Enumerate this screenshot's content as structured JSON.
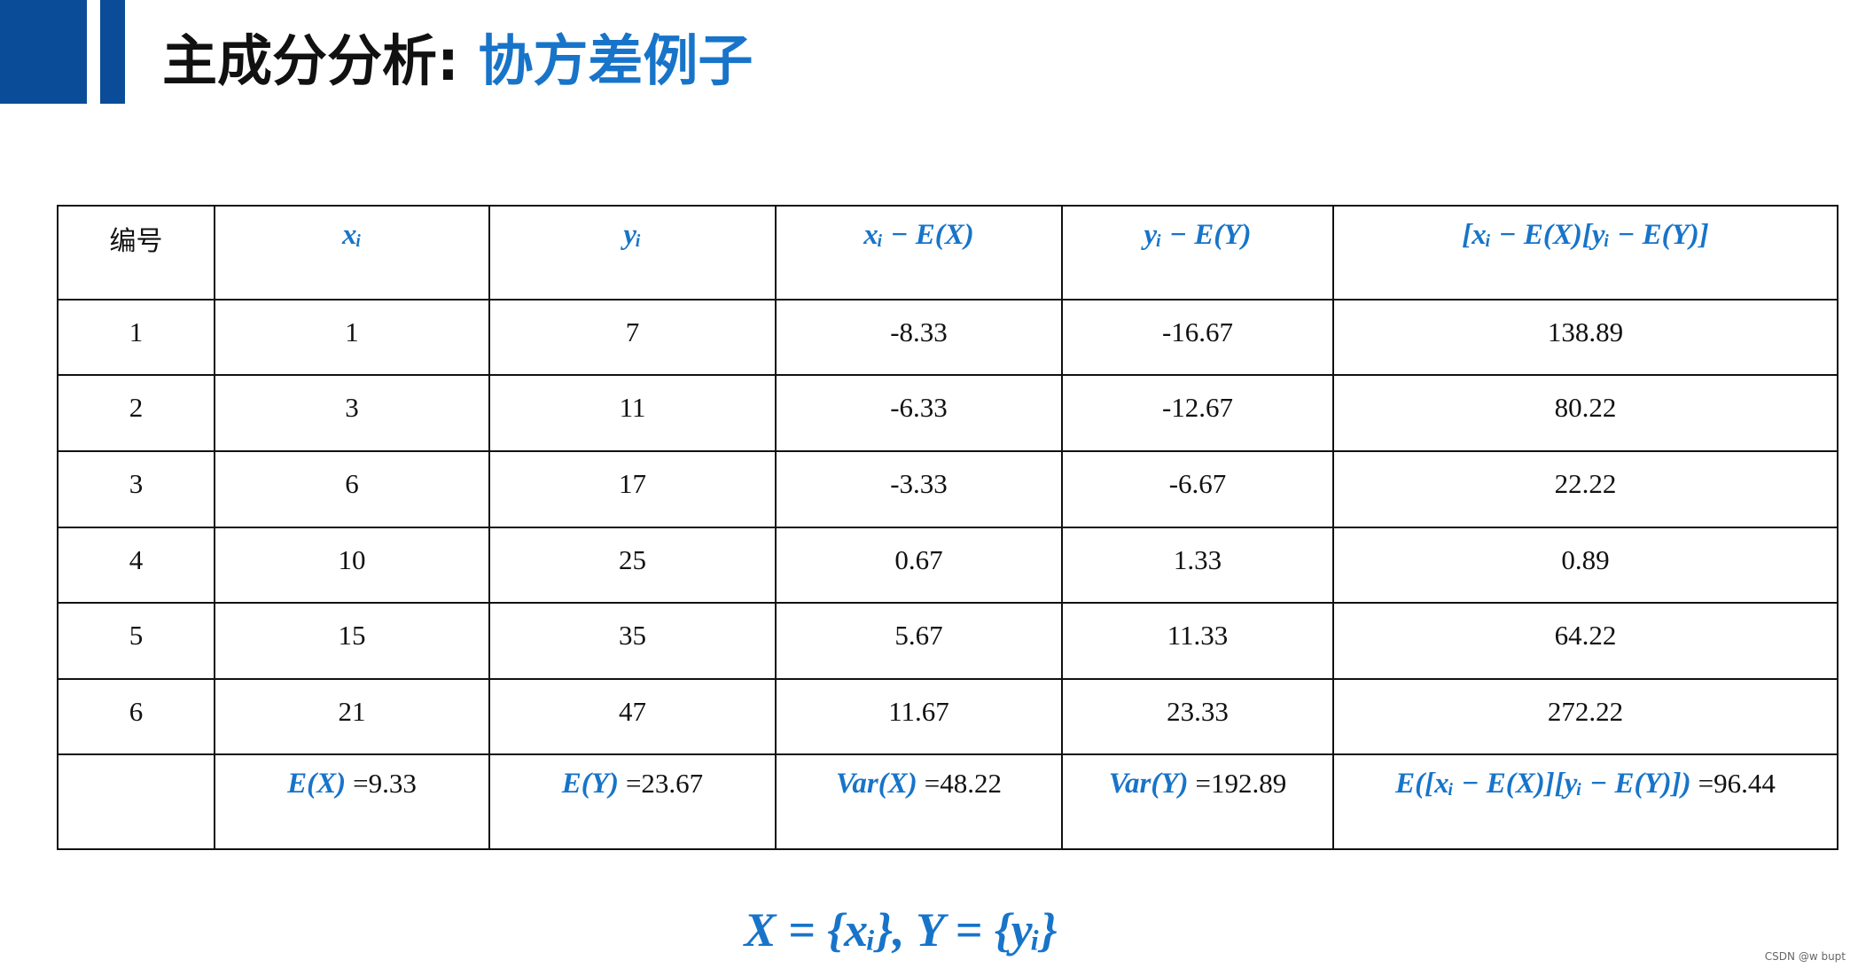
{
  "header": {
    "title": "主成分分析: ",
    "title_highlight": "协方差例子"
  },
  "table": {
    "columns": [
      "编号",
      "xᵢ",
      "yᵢ",
      "xᵢ − E(X)",
      "yᵢ − E(Y)",
      "[xᵢ − E(X)[yᵢ − E(Y)]"
    ],
    "rows": [
      [
        "1",
        "1",
        "7",
        "-8.33",
        "-16.67",
        "138.89"
      ],
      [
        "2",
        "3",
        "11",
        "-6.33",
        "-12.67",
        "80.22"
      ],
      [
        "3",
        "6",
        "17",
        "-3.33",
        "-6.67",
        "22.22"
      ],
      [
        "4",
        "10",
        "25",
        "0.67",
        "1.33",
        "0.89"
      ],
      [
        "5",
        "15",
        "35",
        "5.67",
        "11.33",
        "64.22"
      ],
      [
        "6",
        "21",
        "47",
        "11.67",
        "23.33",
        "272.22"
      ]
    ],
    "summary": [
      {
        "math": "E(X)",
        "value": "=9.33"
      },
      {
        "math": "E(Y)",
        "value": "=23.67"
      },
      {
        "math": "Var(X)",
        "value": "=48.22"
      },
      {
        "math": "Var(Y)",
        "value": "=192.89"
      },
      {
        "math": "E([xᵢ − E(X)][yᵢ − E(Y)])",
        "value": "=96.44"
      }
    ]
  },
  "formula": "X = {xᵢ}, Y = {yᵢ}",
  "watermark": "CSDN @w bupt"
}
